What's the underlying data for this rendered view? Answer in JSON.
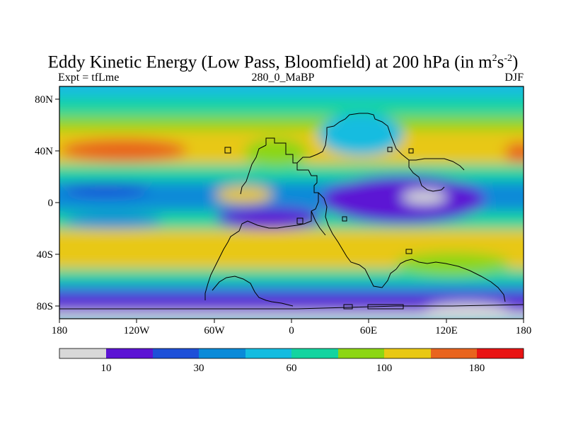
{
  "title": {
    "main": "Eddy Kinetic Energy (Low Pass, Bloomfield) at 200 hPa (in m",
    "sup1": "2",
    "mid": "s",
    "sup2": "-2",
    "end": ")"
  },
  "subtitle": {
    "left": "Expt = tfLme",
    "center": "280_0_MaBP",
    "right": "DJF"
  },
  "map": {
    "lon_ticks": [
      "180",
      "120W",
      "60W",
      "0",
      "60E",
      "120E",
      "180"
    ],
    "lat_ticks": [
      "80N",
      "40N",
      "0",
      "40S",
      "80S"
    ]
  },
  "colorbar": {
    "colors": [
      "#d8d8d8",
      "#5c14d4",
      "#1e50d8",
      "#0a8ad8",
      "#14bce0",
      "#14d4a0",
      "#8cd614",
      "#e8c814",
      "#e8641e",
      "#e81414"
    ],
    "labels": [
      "10",
      "30",
      "60",
      "100",
      "180"
    ]
  },
  "chart_data": {
    "type": "heatmap",
    "title": "Eddy Kinetic Energy (Low Pass, Bloomfield) at 200 hPa (in m^2 s^-2)",
    "experiment": "Expt = tfLme",
    "case": "280_0_MaBP",
    "season": "DJF",
    "x_range": [
      -180,
      180
    ],
    "y_range": [
      -90,
      90
    ],
    "x_ticks": [
      -180,
      -120,
      -60,
      0,
      60,
      120,
      180
    ],
    "y_ticks": [
      80,
      40,
      0,
      -40,
      -80
    ],
    "levels": [
      10,
      20,
      30,
      45,
      60,
      80,
      100,
      140,
      180
    ],
    "level_labels": [
      "10",
      "30",
      "60",
      "100",
      "180"
    ],
    "colors": [
      "#d8d8d8",
      "#5c14d4",
      "#1e50d8",
      "#0a8ad8",
      "#14bce0",
      "#14d4a0",
      "#8cd614",
      "#e8c814",
      "#e8641e",
      "#e81414"
    ]
  }
}
